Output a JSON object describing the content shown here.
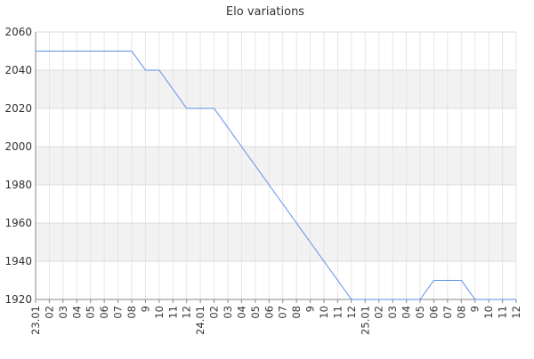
{
  "chart_data": {
    "type": "line",
    "title": "Elo variations",
    "xlabel": "",
    "ylabel": "",
    "x": [
      "23.01",
      "02",
      "03",
      "04",
      "05",
      "06",
      "07",
      "08",
      "9",
      "10",
      "11",
      "12",
      "24.01",
      "02",
      "03",
      "04",
      "05",
      "06",
      "07",
      "08",
      "9",
      "10",
      "11",
      "12",
      "25.01",
      "02",
      "03",
      "04",
      "05",
      "06",
      "07",
      "08",
      "9",
      "10",
      "11",
      "12"
    ],
    "series": [
      {
        "values": [
          2050,
          2050,
          2050,
          2050,
          2050,
          2050,
          2050,
          2050,
          2040,
          2040,
          2030,
          2020,
          2020,
          2020,
          2010,
          2000,
          1990,
          1980,
          1970,
          1960,
          1950,
          1940,
          1930,
          1920,
          1920,
          1920,
          1920,
          1920,
          1920,
          1930,
          1930,
          1930,
          1920,
          1920,
          1920,
          1920
        ]
      }
    ],
    "ylim": [
      1920,
      2060
    ],
    "yticks": [
      1920,
      1940,
      1960,
      1980,
      2000,
      2020,
      2040,
      2060
    ],
    "grid": true,
    "line_color": "#5b8fe8",
    "band_color": "#f2f2f2"
  }
}
